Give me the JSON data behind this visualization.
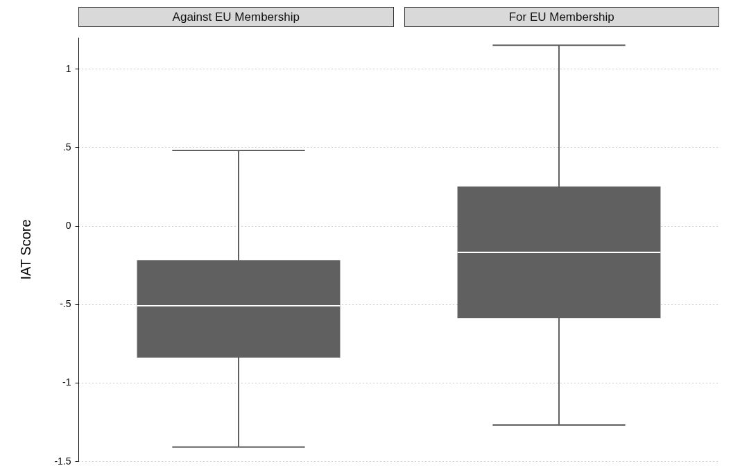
{
  "chart_data": {
    "type": "box",
    "ylabel": "IAT Score",
    "categories": [
      "Against EU Membership",
      "For EU Membership"
    ],
    "color": "#606060",
    "ylim": [
      -1.5,
      1.2
    ],
    "yticks": [
      {
        "value": -1.5,
        "label": "-1.5"
      },
      {
        "value": -1,
        "label": "-1"
      },
      {
        "value": -0.5,
        "label": "-.5"
      },
      {
        "value": 0,
        "label": "0"
      },
      {
        "value": 0.5,
        "label": ".5"
      },
      {
        "value": 1,
        "label": "1"
      }
    ],
    "grid": "y",
    "boxes": [
      {
        "low": -1.41,
        "q1": -0.84,
        "median": -0.51,
        "q3": -0.22,
        "high": 0.48
      },
      {
        "low": -1.27,
        "q1": -0.59,
        "median": -0.17,
        "q3": 0.25,
        "high": 1.15
      }
    ]
  }
}
